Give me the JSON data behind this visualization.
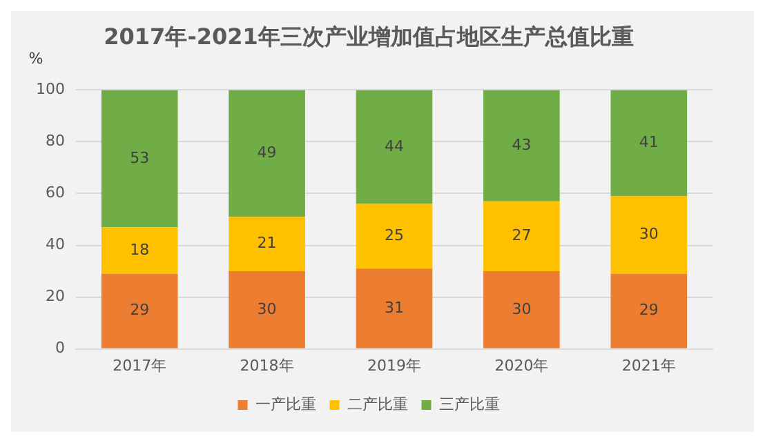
{
  "chart_data": {
    "type": "bar",
    "title": "2017年-2021年三次产业增加值占地区生产总值比重",
    "ylabel": "%",
    "categories": [
      "2017年",
      "2018年",
      "2019年",
      "2020年",
      "2021年"
    ],
    "series": [
      {
        "name": "一产比重",
        "color": "#ed7d31",
        "values": [
          29,
          30,
          31,
          30,
          29
        ]
      },
      {
        "name": "二产比重",
        "color": "#ffc000",
        "values": [
          18,
          21,
          25,
          27,
          30
        ]
      },
      {
        "name": "三产比重",
        "color": "#70ad47",
        "values": [
          53,
          49,
          44,
          43,
          41
        ]
      }
    ],
    "stacked": true,
    "ylim": [
      0,
      100
    ],
    "yticks": [
      0,
      20,
      40,
      60,
      80,
      100
    ],
    "grid": "y",
    "legend": "bottom",
    "data_labels": true
  }
}
